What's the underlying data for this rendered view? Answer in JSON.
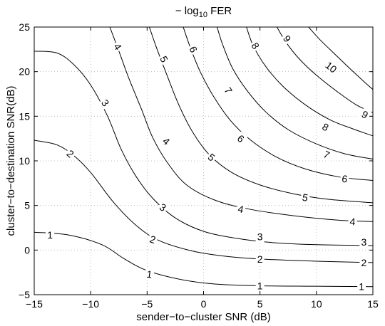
{
  "chart_data": {
    "type": "contour",
    "title_prefix": "− log",
    "title_subscript": "10",
    "title_suffix": " FER",
    "xlabel": "sender−to−cluster SNR (dB)",
    "ylabel": "cluster−to−destination SNR(dB)",
    "xlim": [
      -15,
      15
    ],
    "ylim": [
      -5,
      25
    ],
    "xticks": [
      -15,
      -10,
      -5,
      0,
      5,
      10,
      15
    ],
    "yticks": [
      -5,
      0,
      5,
      10,
      15,
      20,
      25
    ],
    "xtick_labels": [
      "−15",
      "−10",
      "−5",
      "0",
      "5",
      "10",
      "15"
    ],
    "ytick_labels": [
      "−5",
      "0",
      "5",
      "10",
      "15",
      "20",
      "25"
    ],
    "grid": true,
    "contours": [
      {
        "level": 1,
        "label": "1",
        "points": [
          [
            -15,
            2.0
          ],
          [
            -12,
            1.7
          ],
          [
            -9,
            0.6
          ],
          [
            -7,
            -1.0
          ],
          [
            -5,
            -2.3
          ],
          [
            -2,
            -3.3
          ],
          [
            1,
            -3.8
          ],
          [
            5,
            -4.0
          ],
          [
            10,
            -4.05
          ],
          [
            15,
            -4.1
          ]
        ]
      },
      {
        "level": 2,
        "label": "2",
        "points": [
          [
            -15,
            12.3
          ],
          [
            -13,
            11.8
          ],
          [
            -11.5,
            10.6
          ],
          [
            -10,
            8.7
          ],
          [
            -8,
            5.4
          ],
          [
            -6,
            2.8
          ],
          [
            -4,
            1.1
          ],
          [
            -1,
            -0.1
          ],
          [
            2,
            -0.7
          ],
          [
            5,
            -1.0
          ],
          [
            10,
            -1.25
          ],
          [
            15,
            -1.4
          ]
        ]
      },
      {
        "level": 3,
        "label": "3",
        "points": [
          [
            -15,
            22.3
          ],
          [
            -13,
            22.1
          ],
          [
            -11.5,
            20.8
          ],
          [
            -10,
            18.5
          ],
          [
            -8.5,
            15.0
          ],
          [
            -7.3,
            11.3
          ],
          [
            -6,
            8.3
          ],
          [
            -4.5,
            5.8
          ],
          [
            -2.5,
            3.6
          ],
          [
            0,
            2.1
          ],
          [
            3,
            1.3
          ],
          [
            6,
            0.85
          ],
          [
            10,
            0.6
          ],
          [
            15,
            0.5
          ]
        ]
      },
      {
        "level": 4,
        "label": "4",
        "points": [
          [
            -8.3,
            25
          ],
          [
            -7.5,
            22.3
          ],
          [
            -6.6,
            19.2
          ],
          [
            -5.5,
            15.8
          ],
          [
            -4.5,
            12.6
          ],
          [
            -3.2,
            9.8
          ],
          [
            -1.5,
            7.3
          ],
          [
            1,
            5.6
          ],
          [
            4,
            4.6
          ],
          [
            8,
            3.85
          ],
          [
            12,
            3.35
          ],
          [
            15,
            3.2
          ]
        ]
      },
      {
        "level": 5,
        "label": "5",
        "points": [
          [
            -4.8,
            25
          ],
          [
            -4.2,
            22.8
          ],
          [
            -3.3,
            19.8
          ],
          [
            -2.2,
            16.3
          ],
          [
            -1,
            13.3
          ],
          [
            0.5,
            10.7
          ],
          [
            2.5,
            8.7
          ],
          [
            5,
            7.3
          ],
          [
            8,
            6.3
          ],
          [
            11,
            5.7
          ],
          [
            15,
            5.3
          ]
        ]
      },
      {
        "level": 6,
        "label": "6",
        "points": [
          [
            -1.8,
            25
          ],
          [
            -1.2,
            22.8
          ],
          [
            -0.3,
            20.0
          ],
          [
            0.9,
            17.2
          ],
          [
            2.4,
            14.5
          ],
          [
            4.2,
            12.3
          ],
          [
            6.5,
            10.4
          ],
          [
            9,
            9.1
          ],
          [
            12,
            8.2
          ],
          [
            15,
            7.8
          ]
        ]
      },
      {
        "level": 7,
        "label": "7",
        "points": [
          [
            1.2,
            25
          ],
          [
            1.7,
            23
          ],
          [
            2.6,
            20.3
          ],
          [
            3.9,
            17.8
          ],
          [
            5.5,
            15.5
          ],
          [
            7.5,
            13.5
          ],
          [
            10,
            11.9
          ],
          [
            12.5,
            10.8
          ],
          [
            15,
            10.2
          ]
        ]
      },
      {
        "level": 8,
        "label": "8",
        "points": [
          [
            3.8,
            25
          ],
          [
            4.4,
            22.9
          ],
          [
            5.5,
            20.6
          ],
          [
            7,
            18.4
          ],
          [
            9,
            16.3
          ],
          [
            11.2,
            14.6
          ],
          [
            13.2,
            13.6
          ],
          [
            15,
            12.8
          ]
        ]
      },
      {
        "level": 9,
        "label": "9",
        "points": [
          [
            6.5,
            25
          ],
          [
            7.3,
            23.3
          ],
          [
            8.5,
            21.4
          ],
          [
            10,
            19.6
          ],
          [
            11.8,
            17.8
          ],
          [
            13.5,
            16.3
          ],
          [
            15,
            15.4
          ]
        ]
      },
      {
        "level": 10,
        "label": "10",
        "points": [
          [
            9.3,
            25
          ],
          [
            10.3,
            23.6
          ],
          [
            11.6,
            22.0
          ],
          [
            13,
            20.3
          ],
          [
            14.2,
            18.9
          ],
          [
            15,
            18.0
          ]
        ]
      }
    ],
    "labels": [
      {
        "text": "1",
        "x": -13.6,
        "y": 1.7,
        "rot": 0
      },
      {
        "text": "1",
        "x": -4.8,
        "y": -2.7,
        "rot": 8
      },
      {
        "text": "1",
        "x": 5.0,
        "y": -4.0,
        "rot": 0
      },
      {
        "text": "1",
        "x": 14.0,
        "y": -4.1,
        "rot": 0
      },
      {
        "text": "2",
        "x": -11.8,
        "y": 10.8,
        "rot": 40
      },
      {
        "text": "2",
        "x": -4.5,
        "y": 1.2,
        "rot": 18
      },
      {
        "text": "2",
        "x": 5.0,
        "y": -1.0,
        "rot": 0
      },
      {
        "text": "2",
        "x": 14.2,
        "y": -1.4,
        "rot": 0
      },
      {
        "text": "3",
        "x": -8.7,
        "y": 16.5,
        "rot": 52
      },
      {
        "text": "3",
        "x": -3.6,
        "y": 4.8,
        "rot": 32
      },
      {
        "text": "3",
        "x": 5.0,
        "y": 1.5,
        "rot": 0
      },
      {
        "text": "3",
        "x": 14.2,
        "y": 0.9,
        "rot": 0
      },
      {
        "text": "4",
        "x": -7.6,
        "y": 22.8,
        "rot": 58
      },
      {
        "text": "4",
        "x": -3.3,
        "y": 12.2,
        "rot": 42
      },
      {
        "text": "4",
        "x": 3.3,
        "y": 4.6,
        "rot": 12
      },
      {
        "text": "4",
        "x": 13.2,
        "y": 3.2,
        "rot": 5
      },
      {
        "text": "5",
        "x": -3.5,
        "y": 21.4,
        "rot": 62
      },
      {
        "text": "5",
        "x": 0.7,
        "y": 10.4,
        "rot": 38
      },
      {
        "text": "5",
        "x": 9.0,
        "y": 5.9,
        "rot": 10
      },
      {
        "text": "6",
        "x": -0.9,
        "y": 22.5,
        "rot": 62
      },
      {
        "text": "6",
        "x": 3.3,
        "y": 12.5,
        "rot": 38
      },
      {
        "text": "6",
        "x": 12.5,
        "y": 8.0,
        "rot": 10
      },
      {
        "text": "7",
        "x": 2.2,
        "y": 17.9,
        "rot": 58
      },
      {
        "text": "7",
        "x": 10.9,
        "y": 10.7,
        "rot": 25
      },
      {
        "text": "8",
        "x": 4.6,
        "y": 22.9,
        "rot": 58
      },
      {
        "text": "8",
        "x": 10.8,
        "y": 13.8,
        "rot": 28
      },
      {
        "text": "9",
        "x": 7.4,
        "y": 23.7,
        "rot": 55
      },
      {
        "text": "9",
        "x": 14.3,
        "y": 15.2,
        "rot": 30
      },
      {
        "text": "10",
        "x": 11.3,
        "y": 20.5,
        "rot": 38
      }
    ]
  }
}
